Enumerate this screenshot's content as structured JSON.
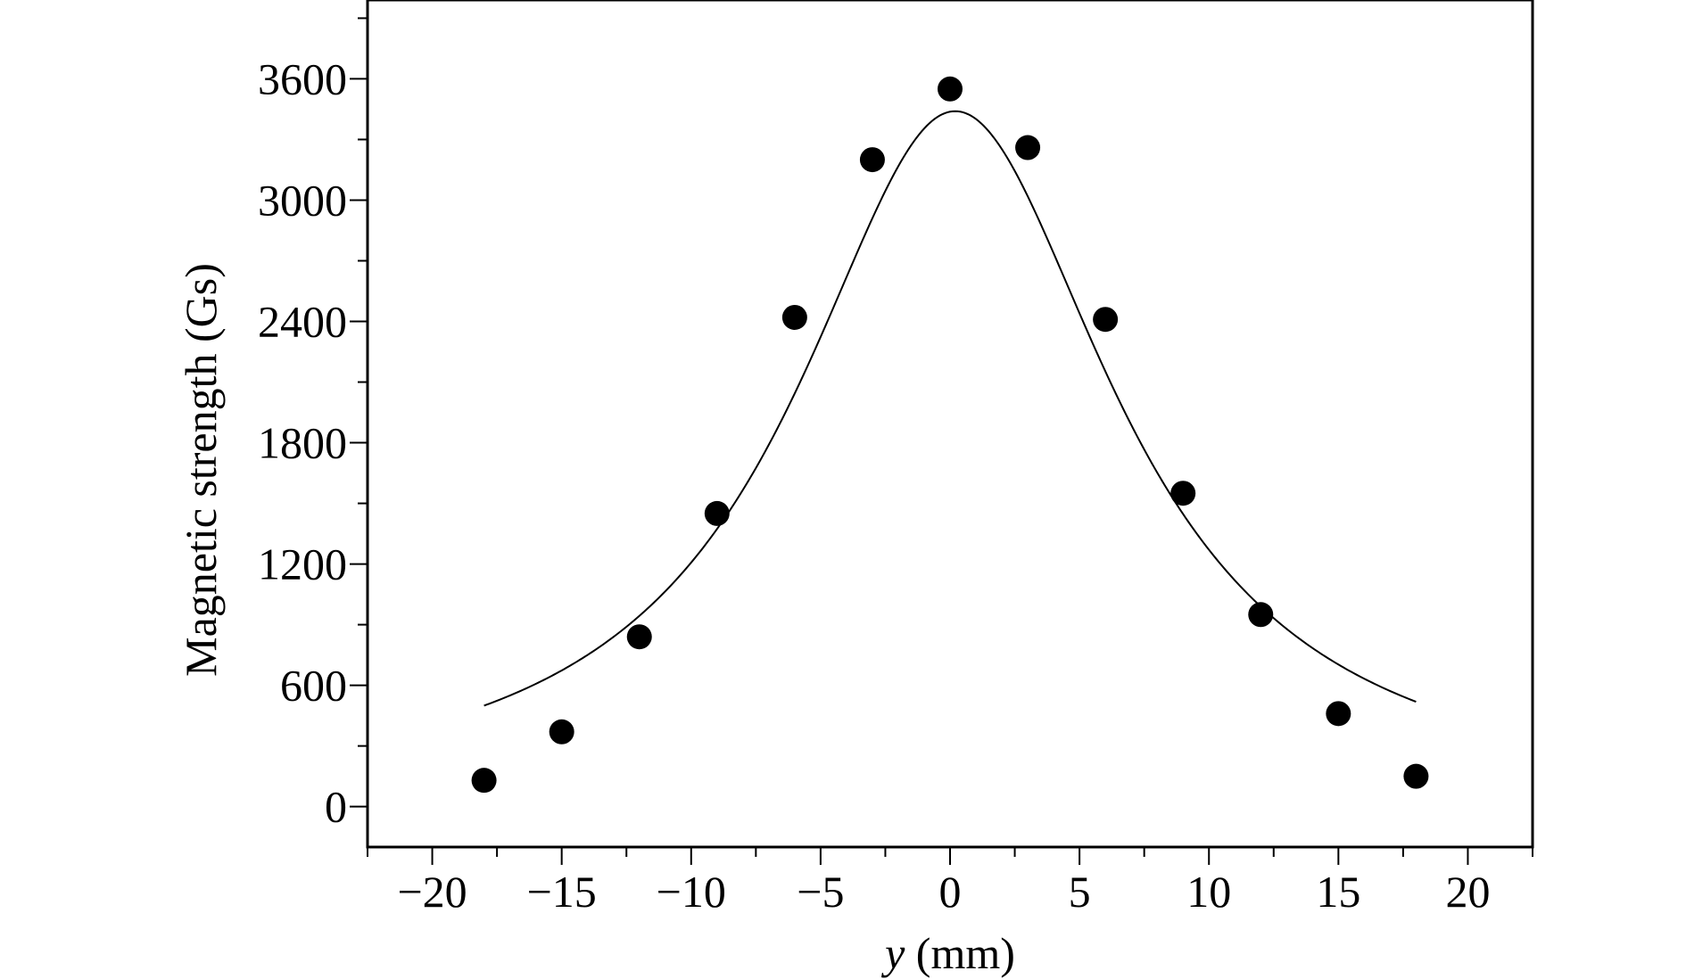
{
  "chart_data": {
    "type": "scatter",
    "title": "",
    "xlabel_var": "y",
    "xlabel_unit": " (mm)",
    "ylabel": "Magnetic strength (Gs)",
    "xlim": [
      -22.5,
      22.5
    ],
    "ylim": [
      -200,
      3990
    ],
    "xticks": [
      -20,
      -15,
      -10,
      -5,
      0,
      5,
      10,
      15,
      20
    ],
    "xtick_labels": [
      "−20",
      "−15",
      "−10",
      "−5",
      "0",
      "5",
      "10",
      "15",
      "20"
    ],
    "yticks": [
      0,
      600,
      1200,
      1800,
      2400,
      3000,
      3600
    ],
    "ytick_labels": [
      "0",
      "600",
      "1200",
      "1800",
      "2400",
      "3000",
      "3600"
    ],
    "x_minor_step": 2.5,
    "y_minor_step": 300,
    "grid": false,
    "legend": "none",
    "series": [
      {
        "marker": "filled-circle",
        "color": "#000000",
        "x": [
          -18,
          -15,
          -12,
          -9,
          -6,
          -3,
          0,
          3,
          6,
          9,
          12,
          15,
          18
        ],
        "y": [
          130,
          370,
          840,
          1450,
          2420,
          3200,
          3550,
          3260,
          2410,
          1550,
          950,
          460,
          150
        ]
      },
      {
        "style": "line",
        "fit": "lorentzian",
        "color": "#000000",
        "x0": 0.2,
        "peak": 3440,
        "gamma": 7.5,
        "x_range": [
          -18,
          18
        ]
      }
    ]
  }
}
